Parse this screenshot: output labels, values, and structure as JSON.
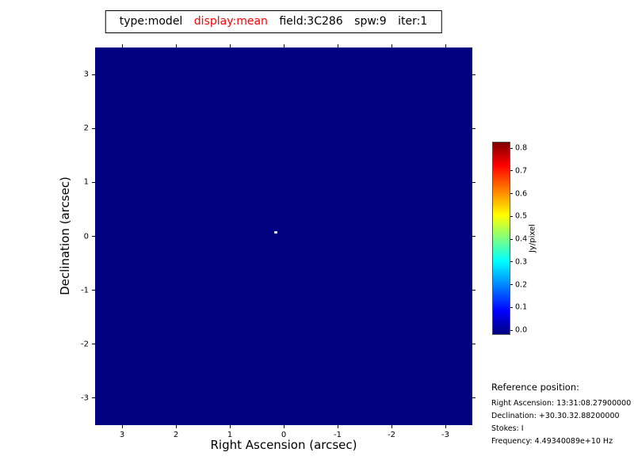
{
  "header": {
    "segments": [
      "type:model",
      "display:mean",
      "field:3C286",
      "spw:9",
      "iter:1"
    ],
    "accent_color": "#ff0000"
  },
  "chart_data": {
    "type": "heatmap",
    "title": "type:model display:mean field:3C286 spw:9 iter:1",
    "xlabel": "Right Ascension (arcsec)",
    "ylabel": "Declination (arcsec)",
    "x_tick_labels": [
      "3",
      "2",
      "1",
      "0",
      "-1",
      "-2",
      "-3"
    ],
    "y_tick_labels": [
      "3",
      "2",
      "1",
      "0",
      "-1",
      "-2",
      "-3"
    ],
    "xlim": [
      3.5,
      -3.5
    ],
    "ylim": [
      -3.5,
      3.5
    ],
    "x_axis_reversed": true,
    "grid": false,
    "colormap": "jet",
    "background_value": 0.0,
    "background_color": "#000080",
    "sources": [
      {
        "x": 0.15,
        "y": 0.08,
        "peak_value_estimate": 0.85,
        "description": "compact point source near field center"
      }
    ],
    "colorbar": {
      "label": "Jy/pixel",
      "min": 0.0,
      "max": 0.8,
      "tick_labels_top_to_bottom": [
        "0.8",
        "0.7",
        "0.6",
        "0.5",
        "0.4",
        "0.3",
        "0.2",
        "0.1",
        "0.0"
      ],
      "gradient_stops_bottom_to_top": [
        {
          "color": "#00007f",
          "pos": 0
        },
        {
          "color": "#0000ff",
          "pos": 12
        },
        {
          "color": "#00ffff",
          "pos": 38
        },
        {
          "color": "#ffff00",
          "pos": 62
        },
        {
          "color": "#ff0000",
          "pos": 88
        },
        {
          "color": "#7f0000",
          "pos": 100
        }
      ]
    }
  },
  "reference_info": {
    "heading": "Reference position:",
    "right_ascension": "Right Ascension: 13:31:08.27900000",
    "declination": "Declination: +30.30.32.88200000",
    "stokes": "Stokes: I",
    "frequency": "Frequency: 4.49340089e+10 Hz"
  }
}
